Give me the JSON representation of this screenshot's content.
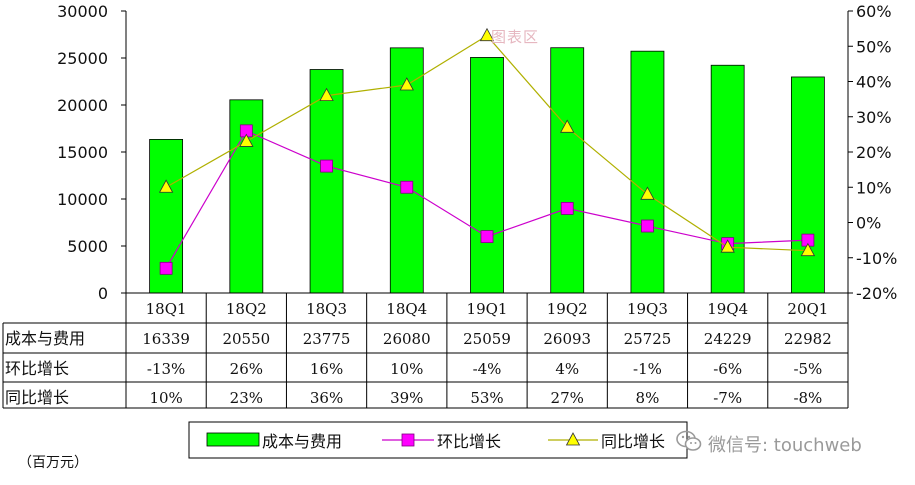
{
  "chart_data": {
    "type": "bar+line",
    "categories": [
      "18Q1",
      "18Q2",
      "18Q3",
      "18Q4",
      "19Q1",
      "19Q2",
      "19Q3",
      "19Q4",
      "20Q1"
    ],
    "series": [
      {
        "name": "成本与费用",
        "kind": "bar",
        "axis": "left",
        "color": "#00ff00",
        "values": [
          16339,
          20550,
          23775,
          26080,
          25059,
          26093,
          25725,
          24229,
          22982
        ]
      },
      {
        "name": "环比增长",
        "kind": "line",
        "axis": "right",
        "color": "#cc00cc",
        "marker": "square",
        "values": [
          -13,
          26,
          16,
          10,
          -4,
          4,
          -1,
          -6,
          -5
        ]
      },
      {
        "name": "同比增长",
        "kind": "line",
        "axis": "right",
        "color": "#b0b000",
        "marker": "triangle",
        "values": [
          10,
          23,
          36,
          39,
          53,
          27,
          8,
          -7,
          -8
        ]
      }
    ],
    "left_axis": {
      "min": 0,
      "max": 30000,
      "step": 5000,
      "ticks": [
        "0",
        "5000",
        "10000",
        "15000",
        "20000",
        "25000",
        "30000"
      ]
    },
    "right_axis": {
      "min": -20,
      "max": 60,
      "step": 10,
      "ticks": [
        "-20%",
        "-10%",
        "0%",
        "10%",
        "20%",
        "30%",
        "40%",
        "50%",
        "60%"
      ]
    },
    "grid": false,
    "legend_position": "bottom",
    "table": {
      "rows": [
        {
          "label": "成本与费用",
          "cells": [
            "16339",
            "20550",
            "23775",
            "26080",
            "25059",
            "26093",
            "25725",
            "24229",
            "22982"
          ]
        },
        {
          "label": "环比增长",
          "cells": [
            "-13%",
            "26%",
            "16%",
            "10%",
            "-4%",
            "4%",
            "-1%",
            "-6%",
            "-5%"
          ]
        },
        {
          "label": "同比增长",
          "cells": [
            "10%",
            "23%",
            "36%",
            "39%",
            "53%",
            "27%",
            "8%",
            "-7%",
            "-8%"
          ]
        }
      ]
    }
  },
  "legend": {
    "bar_label": "成本与费用",
    "mom_label": "环比增长",
    "yoy_label": "同比增长"
  },
  "unit_note": "（百万元）",
  "watermarks": {
    "top": "图表区",
    "bottom_right": "微信号: touchweb"
  }
}
